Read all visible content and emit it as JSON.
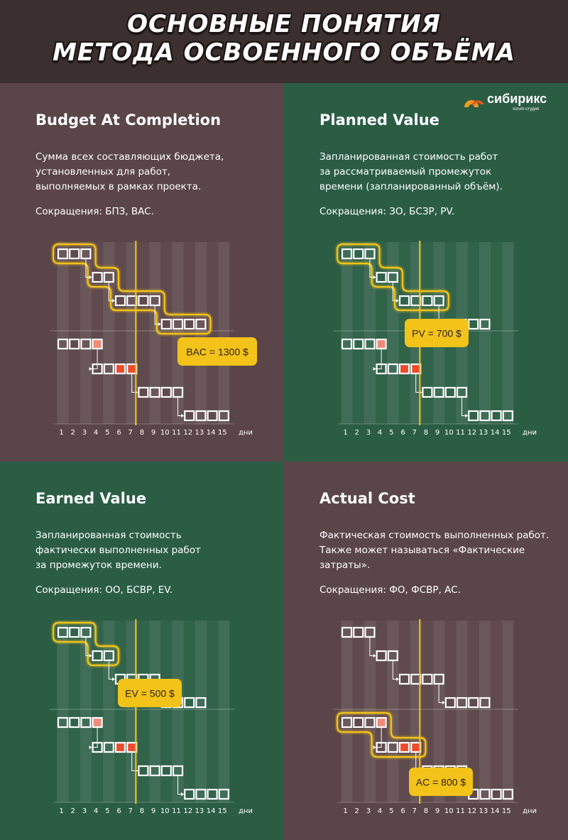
{
  "header": {
    "title_line1": "ОСНОВНЫЕ ПОНЯТИЯ",
    "title_line2": "МЕТОДА ОСВОЕННОГО ОБЪЁМА"
  },
  "logo": {
    "name": "сибирикс",
    "subtitle": "scrum-студия"
  },
  "colors": {
    "brown_panel": "#5a4548",
    "green_panel": "#2b5d45",
    "highlight": "#f3c319",
    "spent_light": "#ee8a78",
    "spent_red": "#ee4a2c"
  },
  "axis": {
    "days": [
      "1",
      "2",
      "3",
      "4",
      "5",
      "6",
      "7",
      "8",
      "9",
      "10",
      "11",
      "12",
      "13",
      "14",
      "15"
    ],
    "unit": "дни",
    "current_day": 7.5
  },
  "panels": [
    {
      "title": "Budget At Completion",
      "desc": [
        "Сумма всех составляющих бюджета,",
        "установленных для работ,",
        "выполняемых в рамках проекта."
      ],
      "abbr": "Сокращения: БПЗ, BAC.",
      "badge": "BAC = 1300 $",
      "highlight": "plan_all"
    },
    {
      "title": "Planned Value",
      "desc": [
        "Запланированная стоимость работ",
        "за рассматриваемый промежуток",
        "времени (запланированный объём)."
      ],
      "abbr": "Сокращения: ЗО, БСЗР, PV.",
      "badge": "PV = 700 $",
      "highlight": "plan_to_date"
    },
    {
      "title": "Earned Value",
      "desc": [
        "Запланированная стоимость",
        "фактически выполненных работ",
        "за промежуток времени."
      ],
      "abbr": "Сокращения: ОО, БСВР, EV.",
      "badge": "EV = 500 $",
      "highlight": "plan_done"
    },
    {
      "title": "Actual Cost",
      "desc": [
        "Фактическая стоимость выполненных работ.",
        "Также может называться «Фактические",
        "затраты»."
      ],
      "abbr": "Сокращения: ФО, ФСВР, AC.",
      "badge": "AC = 800 $",
      "highlight": "actual_done"
    }
  ],
  "chart_data": {
    "type": "gantt",
    "unit": "дни",
    "current_day": 7.5,
    "planned_tasks": [
      {
        "start": 1,
        "cells": 3
      },
      {
        "start": 4,
        "cells": 2
      },
      {
        "start": 6,
        "cells": 4
      },
      {
        "start": 10,
        "cells": 4
      }
    ],
    "actual_tasks": [
      {
        "start": 1,
        "cells": 4,
        "spent": [
          "",
          "",
          "",
          "light"
        ]
      },
      {
        "start": 4,
        "cells": 4,
        "spent": [
          "",
          "",
          "red",
          "red"
        ]
      },
      {
        "start": 8,
        "cells": 4,
        "spent": [
          "",
          "",
          "",
          ""
        ]
      },
      {
        "start": 12,
        "cells": 4,
        "spent": [
          "",
          "",
          "",
          ""
        ]
      }
    ]
  }
}
